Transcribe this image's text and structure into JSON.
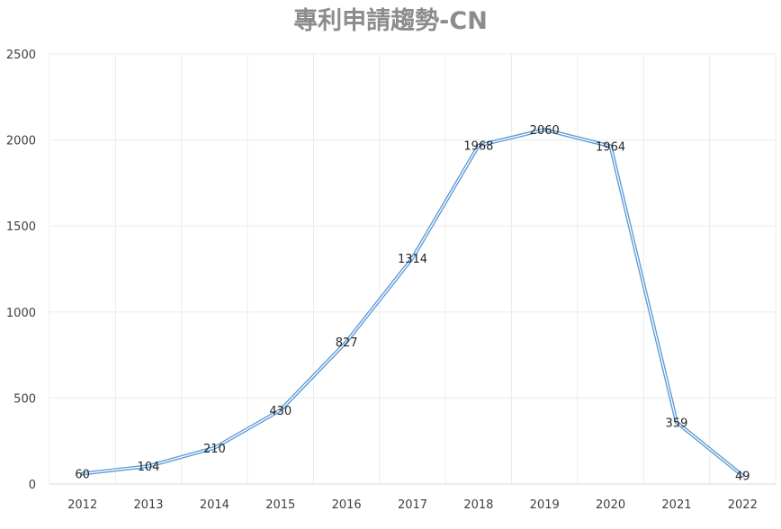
{
  "chart_data": {
    "type": "line",
    "title": "專利申請趨勢-CN",
    "xlabel": "",
    "ylabel": "",
    "categories": [
      "2012",
      "2013",
      "2014",
      "2015",
      "2016",
      "2017",
      "2018",
      "2019",
      "2020",
      "2021",
      "2022"
    ],
    "series": [
      {
        "name": "",
        "values": [
          60,
          104,
          210,
          430,
          827,
          1314,
          1968,
          2060,
          1964,
          359,
          49
        ],
        "color": "#5b9bd5"
      }
    ],
    "ylim": [
      0,
      2500
    ],
    "yticks": [
      "0",
      "500",
      "1000",
      "1500",
      "2000",
      "2500"
    ],
    "grid": true,
    "legend": "none",
    "data_labels": true
  }
}
